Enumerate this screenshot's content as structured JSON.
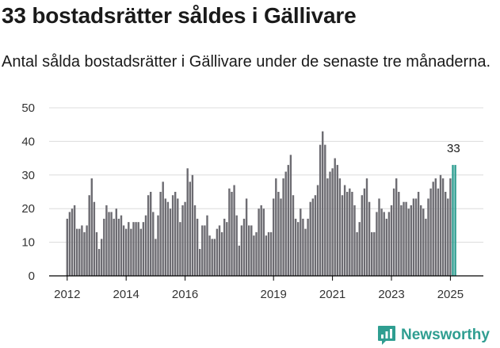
{
  "title": "33 bostadsrätter såldes i Gällivare",
  "subtitle": "Antal sålda bostadsrätter i Gällivare under de senaste tre månaderna.",
  "brand": {
    "name": "Newsworthy",
    "icon": "newsworthy-logo-icon"
  },
  "colors": {
    "bar": "#6d6c72",
    "highlight": "#2f9e91",
    "grid": "#dcdcdc",
    "brand": "#2f9e91"
  },
  "chart_data": {
    "type": "bar",
    "title": "33 bostadsrätter såldes i Gällivare",
    "xlabel": "",
    "ylabel": "",
    "ylim": [
      0,
      50
    ],
    "yticks": [
      0,
      10,
      20,
      30,
      40,
      50
    ],
    "start_year": 2012,
    "start_month": 1,
    "xticks": [
      "2012",
      "2014",
      "2016",
      "2019",
      "2021",
      "2023",
      "2025"
    ],
    "grid": true,
    "highlight_last": 2,
    "annotation": "33",
    "values": [
      17,
      19,
      20,
      21,
      14,
      14,
      15,
      13,
      15,
      24,
      29,
      22,
      13,
      8,
      11,
      17,
      21,
      19,
      19,
      17,
      20,
      17,
      18,
      15,
      14,
      16,
      14,
      16,
      16,
      16,
      14,
      16,
      18,
      24,
      25,
      19,
      11,
      18,
      25,
      28,
      23,
      22,
      20,
      24,
      25,
      23,
      16,
      21,
      22,
      32,
      28,
      30,
      21,
      17,
      8,
      15,
      15,
      18,
      12,
      11,
      11,
      14,
      15,
      13,
      17,
      16,
      26,
      25,
      27,
      18,
      9,
      15,
      17,
      23,
      15,
      15,
      12,
      13,
      20,
      21,
      20,
      12,
      13,
      13,
      23,
      29,
      25,
      23,
      29,
      31,
      33,
      36,
      24,
      17,
      16,
      20,
      17,
      14,
      17,
      22,
      23,
      24,
      27,
      39,
      43,
      39,
      29,
      31,
      32,
      35,
      33,
      29,
      24,
      27,
      25,
      26,
      25,
      21,
      13,
      16,
      24,
      26,
      29,
      22,
      13,
      13,
      19,
      23,
      20,
      19,
      17,
      19,
      21,
      26,
      29,
      25,
      21,
      22,
      22,
      20,
      21,
      23,
      23,
      25,
      21,
      20,
      17,
      23,
      26,
      28,
      29,
      26,
      30,
      29,
      25,
      23,
      29,
      33,
      33
    ]
  }
}
